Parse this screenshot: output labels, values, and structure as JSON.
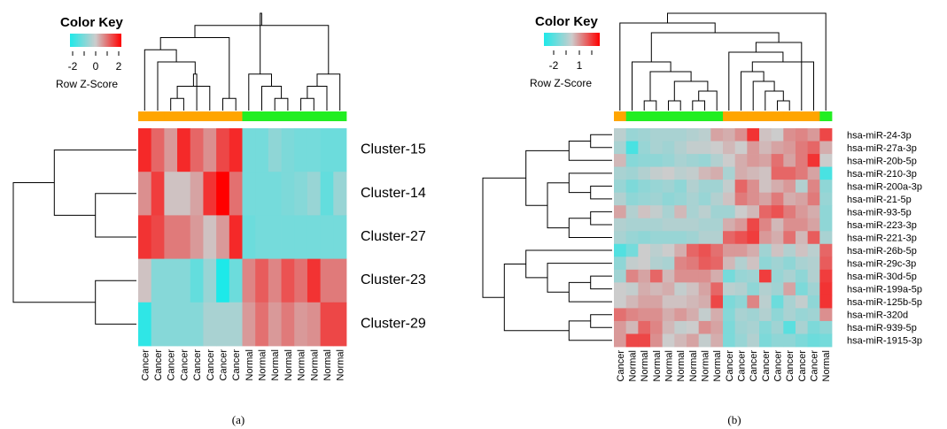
{
  "chart_data": [
    {
      "type": "heatmap",
      "panel": "(a)",
      "color_key": {
        "title": "Color Key",
        "label": "Row Z-Score",
        "ticks": [
          "-2",
          "0",
          "2"
        ],
        "colors": [
          "#1de9e9",
          "#cccccc",
          "#ff0000"
        ]
      },
      "group_colors": {
        "Cancer": "#ffa500",
        "Normal": "#22ee22"
      },
      "columns": [
        "Cancer",
        "Cancer",
        "Cancer",
        "Cancer",
        "Cancer",
        "Cancer",
        "Cancer",
        "Cancer",
        "Normal",
        "Normal",
        "Normal",
        "Normal",
        "Normal",
        "Normal",
        "Normal",
        "Normal"
      ],
      "rows": [
        "Cluster-15",
        "Cluster-14",
        "Cluster-27",
        "Cluster-23",
        "Cluster-29"
      ],
      "values": [
        [
          1.6,
          1.0,
          0.5,
          1.6,
          1.0,
          0.6,
          1.3,
          1.6,
          -1.0,
          -1.0,
          -0.7,
          -0.9,
          -1.0,
          -1.0,
          -1.1,
          -1.1
        ],
        [
          0.6,
          1.4,
          0.1,
          0.1,
          0.4,
          1.5,
          2.0,
          0.9,
          -1.0,
          -1.0,
          -1.0,
          -0.9,
          -0.8,
          -0.6,
          -1.2,
          -0.6
        ],
        [
          1.5,
          1.3,
          0.8,
          0.8,
          0.5,
          0.1,
          0.5,
          1.6,
          -1.1,
          -1.0,
          -1.0,
          -1.0,
          -1.0,
          -1.0,
          -1.0,
          -1.0
        ],
        [
          0.1,
          -0.8,
          -0.8,
          -0.8,
          -1.2,
          -0.6,
          -2.0,
          -1.1,
          0.7,
          1.1,
          0.7,
          1.2,
          0.9,
          1.5,
          0.8,
          0.8
        ],
        [
          -1.8,
          -0.8,
          -0.8,
          -0.8,
          -0.8,
          -0.4,
          -0.4,
          -0.4,
          0.5,
          0.9,
          0.5,
          0.8,
          0.5,
          0.6,
          1.3,
          1.3
        ]
      ],
      "row_dendrogram": [
        [
          1,
          2
        ],
        [
          0,
          -1
        ],
        [
          3,
          4
        ],
        [
          -2,
          -3
        ]
      ],
      "col_dendrogram": [
        [
          2,
          3
        ],
        [
          5,
          -1
        ],
        [
          4,
          -2
        ],
        [
          6,
          7
        ],
        [
          1,
          -3
        ],
        [
          0,
          -5
        ],
        [
          -4,
          -6
        ],
        [
          10,
          11
        ],
        [
          9,
          -8
        ],
        [
          12,
          13
        ],
        [
          8,
          -9
        ],
        [
          -10,
          14
        ],
        [
          -12,
          15
        ],
        [
          -7,
          -13
        ],
        [
          -11,
          -14
        ]
      ],
      "caption": "(a)"
    },
    {
      "type": "heatmap",
      "panel": "(b)",
      "color_key": {
        "title": "Color Key",
        "label": "Row Z-Score",
        "ticks": [
          "-2",
          "1"
        ],
        "colors": [
          "#1de9e9",
          "#cccccc",
          "#ff0000"
        ]
      },
      "group_colors": {
        "Cancer": "#ffa500",
        "Normal": "#22ee22"
      },
      "columns": [
        "Cancer",
        "Normal",
        "Normal",
        "Normal",
        "Normal",
        "Normal",
        "Normal",
        "Normal",
        "Normal",
        "Cancer",
        "Cancer",
        "Cancer",
        "Cancer",
        "Cancer",
        "Cancer",
        "Cancer",
        "Cancer",
        "Normal"
      ],
      "rows": [
        "hsa-miR-24-3p",
        "hsa-miR-27a-3p",
        "hsa-miR-20b-5p",
        "hsa-miR-210-3p",
        "hsa-miR-200a-3p",
        "hsa-miR-21-5p",
        "hsa-miR-93-5p",
        "hsa-miR-223-3p",
        "hsa-miR-221-3p",
        "hsa-miR-26b-5p",
        "hsa-miR-29c-3p",
        "hsa-miR-30d-5p",
        "hsa-miR-199a-5p",
        "hsa-miR-125b-5p",
        "hsa-miR-320d",
        "hsa-miR-939-5p",
        "hsa-miR-1915-3p"
      ],
      "values": [
        [
          -0.2,
          -0.6,
          -0.5,
          -0.4,
          -0.4,
          -0.4,
          -0.3,
          -0.2,
          0.4,
          0.3,
          0.6,
          1.5,
          0.1,
          0.0,
          0.6,
          0.7,
          0.5,
          1.3
        ],
        [
          -0.4,
          -1.5,
          -0.6,
          -0.4,
          -0.5,
          -0.3,
          -0.1,
          -0.1,
          0.0,
          0.2,
          0.0,
          0.5,
          0.2,
          0.4,
          0.5,
          0.8,
          1.0,
          0.3
        ],
        [
          0.2,
          -0.8,
          -0.7,
          -0.7,
          -0.6,
          -0.4,
          -0.5,
          -0.6,
          -0.3,
          0.0,
          0.3,
          0.5,
          0.4,
          0.9,
          0.4,
          0.8,
          1.5,
          0.0
        ],
        [
          -0.4,
          -0.5,
          -0.3,
          -0.1,
          0.0,
          -0.2,
          -0.1,
          0.2,
          0.3,
          -0.4,
          0.3,
          0.2,
          0.1,
          1.0,
          1.0,
          0.8,
          0.4,
          -1.5
        ],
        [
          -0.6,
          -0.9,
          -0.7,
          -0.6,
          -0.5,
          -0.7,
          -0.3,
          -0.5,
          -0.5,
          -0.1,
          1.0,
          0.6,
          0.1,
          0.3,
          0.5,
          -0.3,
          0.7,
          -0.7
        ],
        [
          -0.3,
          -0.7,
          -0.6,
          -0.5,
          -0.7,
          -0.6,
          -0.4,
          -0.6,
          -0.3,
          0.1,
          0.8,
          0.6,
          0.4,
          0.8,
          0.3,
          0.4,
          0.8,
          -0.6
        ],
        [
          0.4,
          -0.3,
          0.1,
          -0.1,
          -0.4,
          0.2,
          -0.4,
          -0.2,
          -0.5,
          -0.5,
          0.0,
          0.2,
          1.0,
          1.2,
          0.8,
          0.5,
          0.3,
          -0.7
        ],
        [
          -0.3,
          -0.4,
          -0.4,
          -0.4,
          -0.3,
          -0.3,
          -0.3,
          -0.4,
          -0.4,
          0.3,
          0.5,
          1.3,
          0.7,
          0.2,
          0.6,
          0.6,
          0.4,
          -0.7
        ],
        [
          -0.4,
          -0.6,
          -0.7,
          -0.6,
          -0.6,
          -0.6,
          -0.5,
          -0.3,
          -0.3,
          1.0,
          1.2,
          1.4,
          0.5,
          0.3,
          0.9,
          0.2,
          1.1,
          -0.4
        ],
        [
          -1.4,
          -1.0,
          0.0,
          -0.2,
          0.0,
          0.3,
          1.0,
          1.2,
          0.9,
          0.5,
          0.5,
          0.3,
          -0.5,
          0.1,
          -0.3,
          0.1,
          -0.2,
          1.0
        ],
        [
          -0.7,
          -0.1,
          0.0,
          -0.3,
          -0.4,
          0.7,
          0.8,
          1.1,
          1.0,
          0.2,
          -0.3,
          0.1,
          -0.7,
          -0.5,
          -0.7,
          -0.4,
          -0.3,
          1.1
        ],
        [
          -0.5,
          0.7,
          0.4,
          1.0,
          0.2,
          0.6,
          0.6,
          0.6,
          0.3,
          -1.0,
          -0.6,
          -0.5,
          1.4,
          -0.6,
          -0.4,
          -0.7,
          -0.3,
          1.4
        ],
        [
          0.0,
          -0.1,
          0.3,
          0.2,
          0.3,
          -0.1,
          0.1,
          0.4,
          1.0,
          -0.2,
          -0.3,
          -0.7,
          -0.3,
          -0.5,
          0.4,
          -0.9,
          -0.5,
          1.5
        ],
        [
          0.0,
          0.2,
          0.4,
          0.4,
          0.1,
          0.1,
          0.2,
          0.3,
          1.3,
          -0.9,
          -0.7,
          0.7,
          -0.2,
          -1.1,
          -0.4,
          -0.1,
          -0.7,
          1.5
        ],
        [
          0.9,
          0.7,
          0.6,
          0.6,
          0.3,
          0.5,
          0.3,
          -0.1,
          0.3,
          -0.8,
          -0.4,
          -0.5,
          -0.3,
          -0.7,
          -0.4,
          -0.6,
          -0.5,
          0.6
        ],
        [
          0.5,
          0.2,
          1.0,
          0.7,
          0.2,
          -0.1,
          0.0,
          0.6,
          0.4,
          -0.9,
          -0.5,
          -0.4,
          -0.8,
          -0.5,
          -1.3,
          -0.4,
          -0.9,
          -0.7
        ],
        [
          0.5,
          1.3,
          1.3,
          0.6,
          0.0,
          0.2,
          0.4,
          -0.1,
          0.3,
          -0.9,
          -0.6,
          -0.3,
          -0.9,
          -0.7,
          -0.7,
          -0.9,
          -1.1,
          -1.0
        ]
      ],
      "row_dendrogram": [
        [
          0,
          1
        ],
        [
          2,
          -1
        ],
        [
          4,
          5
        ],
        [
          3,
          -3
        ],
        [
          6,
          7
        ],
        [
          -5,
          8
        ],
        [
          -4,
          -6
        ],
        [
          -2,
          -7
        ],
        [
          11,
          12
        ],
        [
          13,
          -9
        ],
        [
          10,
          -10
        ],
        [
          9,
          -11
        ],
        [
          14,
          15
        ],
        [
          -13,
          16
        ],
        [
          -12,
          -14
        ],
        [
          -8,
          -15
        ]
      ],
      "col_dendrogram": [
        [
          6,
          7
        ],
        [
          4,
          5
        ],
        [
          -1,
          8
        ],
        [
          -2,
          -3
        ],
        [
          2,
          3
        ],
        [
          -5,
          -4
        ],
        [
          1,
          -6
        ],
        [
          13,
          14
        ],
        [
          12,
          -8
        ],
        [
          11,
          -9
        ],
        [
          10,
          -10
        ],
        [
          -11,
          16
        ],
        [
          9,
          -12
        ],
        [
          15,
          -13
        ],
        [
          -7,
          -14
        ],
        [
          0,
          -15
        ],
        [
          -16,
          17
        ]
      ],
      "caption": "(b)"
    }
  ]
}
